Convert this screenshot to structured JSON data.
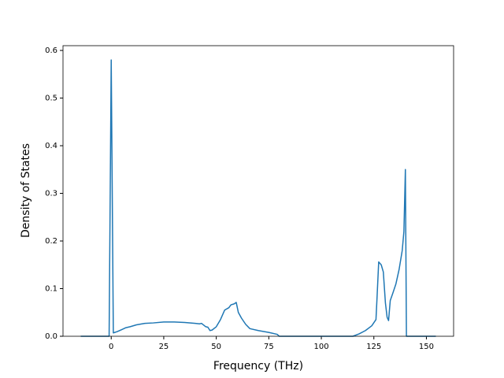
{
  "chart_data": {
    "type": "line",
    "xlabel": "Frequency (THz)",
    "ylabel": "Density of States",
    "series": [
      {
        "color": "#1f77b4",
        "x": [
          -14.5,
          -1,
          0,
          1,
          3,
          5,
          7,
          9,
          12,
          16,
          20,
          25,
          30,
          35,
          40,
          42,
          43,
          45,
          46,
          47,
          48,
          50,
          52,
          54,
          56,
          57,
          58.5,
          59.5,
          60.5,
          62,
          64,
          66,
          70,
          75,
          79,
          80,
          115,
          118,
          121,
          124,
          126,
          126.5,
          127.3,
          128.5,
          129.5,
          130.5,
          131.3,
          132,
          132.8,
          134,
          135.5,
          137,
          138.5,
          139.3,
          140,
          140.5,
          154.5
        ],
        "values": [
          0,
          0,
          0.58,
          0.007,
          0.01,
          0.014,
          0.018,
          0.02,
          0.024,
          0.027,
          0.028,
          0.03,
          0.03,
          0.029,
          0.027,
          0.026,
          0.027,
          0.02,
          0.019,
          0.012,
          0.013,
          0.02,
          0.035,
          0.055,
          0.06,
          0.066,
          0.068,
          0.071,
          0.05,
          0.038,
          0.025,
          0.016,
          0.012,
          0.008,
          0.004,
          0,
          0,
          0.005,
          0.012,
          0.022,
          0.035,
          0.08,
          0.156,
          0.15,
          0.135,
          0.07,
          0.04,
          0.033,
          0.075,
          0.09,
          0.11,
          0.14,
          0.18,
          0.22,
          0.35,
          0,
          0
        ]
      }
    ],
    "xlim": [
      -22.95,
      162.95
    ],
    "xticks": [
      0,
      25,
      50,
      75,
      100,
      125,
      150
    ],
    "ylim": [
      0,
      0.61
    ],
    "yticks": [
      {
        "value": 0,
        "label": "0.0"
      },
      0.1,
      0.2,
      0.3,
      0.4,
      0.5,
      0.6
    ]
  }
}
